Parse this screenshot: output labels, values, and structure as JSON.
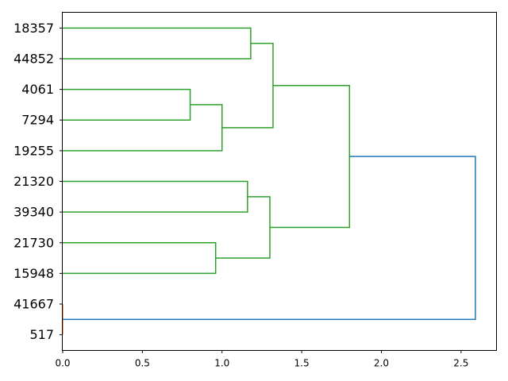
{
  "chart_data": {
    "type": "dendrogram",
    "orientation": "left",
    "title": "",
    "xlabel": "",
    "ylabel": "",
    "xlim": [
      0,
      2.72
    ],
    "xticks": [
      {
        "value": 0.0,
        "label": "0.0"
      },
      {
        "value": 0.5,
        "label": "0.5"
      },
      {
        "value": 1.0,
        "label": "1.0"
      },
      {
        "value": 1.5,
        "label": "1.5"
      },
      {
        "value": 2.0,
        "label": "2.0"
      },
      {
        "value": 2.5,
        "label": "2.5"
      }
    ],
    "leaves": [
      "18357",
      "44852",
      "4061",
      "7294",
      "19255",
      "21320",
      "39340",
      "21730",
      "15948",
      "41667",
      "517"
    ],
    "colors": {
      "cluster_1": "#2ca02c",
      "cluster_2": "#ff7f0e",
      "above_threshold": "#1f77b4"
    },
    "merges": [
      {
        "id": "m1",
        "left": "4061",
        "right": "7294",
        "height": 0.8,
        "color": "cluster_1"
      },
      {
        "id": "m2",
        "left": "m1",
        "right": "19255",
        "height": 1.0,
        "color": "cluster_1"
      },
      {
        "id": "m3",
        "left": "18357",
        "right": "44852",
        "height": 1.18,
        "color": "cluster_1"
      },
      {
        "id": "m4",
        "left": "m3",
        "right": "m2",
        "height": 1.32,
        "color": "cluster_1"
      },
      {
        "id": "m5",
        "left": "21320",
        "right": "39340",
        "height": 1.16,
        "color": "cluster_1"
      },
      {
        "id": "m6",
        "left": "21730",
        "right": "15948",
        "height": 0.96,
        "color": "cluster_1"
      },
      {
        "id": "m7",
        "left": "m5",
        "right": "m6",
        "height": 1.3,
        "color": "cluster_1"
      },
      {
        "id": "m8",
        "left": "m4",
        "right": "m7",
        "height": 1.8,
        "color": "cluster_1"
      },
      {
        "id": "m9",
        "left": "41667",
        "right": "517",
        "height": 0.0,
        "color": "cluster_2"
      },
      {
        "id": "m10",
        "left": "m8",
        "right": "m9",
        "height": 2.59,
        "color": "above_threshold"
      }
    ]
  }
}
